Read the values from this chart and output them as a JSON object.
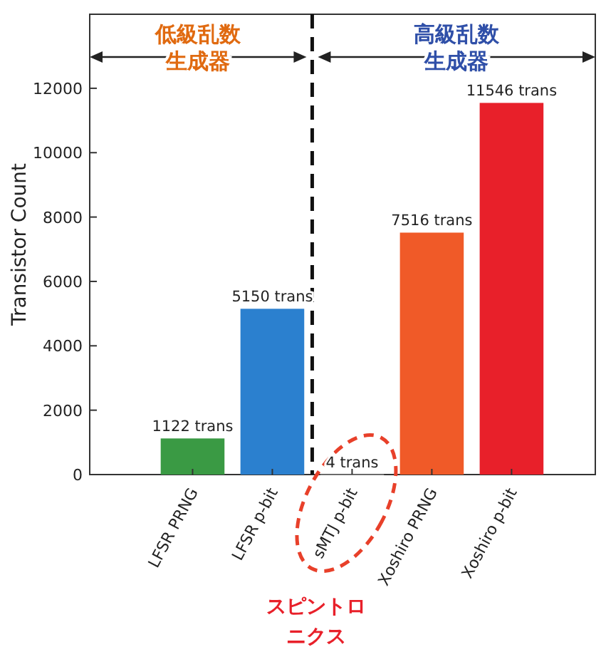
{
  "chart_data": {
    "type": "bar",
    "ylabel": "Transistor Count",
    "categories": [
      "LFSR PRNG",
      "LFSR p-bit",
      "sMTJ p-bit",
      "Xoshiro PRNG",
      "Xoshiro p-bit"
    ],
    "values": [
      1122,
      5150,
      4,
      7516,
      11546
    ],
    "colors": [
      "#3a9a44",
      "#2b80cf",
      "#f4f4f4",
      "#f05a28",
      "#e8202a"
    ],
    "value_labels": [
      "1122 trans",
      "5150 trans",
      "4 trans",
      "7516 trans",
      "11546 trans"
    ],
    "ylim": [
      0,
      14300
    ],
    "yticks": [
      0,
      2000,
      4000,
      6000,
      8000,
      10000,
      12000
    ],
    "annotations": [
      "低級乱数生成器",
      "高級乱数生成器",
      "スピントロニクス"
    ]
  }
}
